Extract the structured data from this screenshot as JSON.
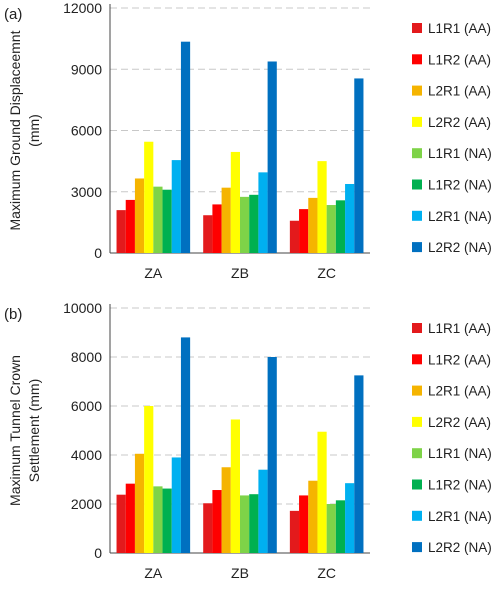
{
  "chart_data": [
    {
      "type": "bar",
      "panel_label": "(a)",
      "ylabel_lines": [
        "Maximum Ground Displaceemnt",
        "(mm)"
      ],
      "categories": [
        "ZA",
        "ZB",
        "ZC"
      ],
      "ylim": [
        0,
        12000
      ],
      "yticks": [
        0,
        3000,
        6000,
        9000,
        12000
      ],
      "grid": true,
      "legend_position": "right",
      "series": [
        {
          "name": "L1R1 (AA)",
          "color": "#e31a1c",
          "values": [
            2100,
            1850,
            1580
          ]
        },
        {
          "name": "L1R2 (AA)",
          "color": "#ff0000",
          "values": [
            2600,
            2380,
            2150
          ]
        },
        {
          "name": "L2R1 (AA)",
          "color": "#f5b400",
          "values": [
            3650,
            3200,
            2700
          ]
        },
        {
          "name": "L2R2 (AA)",
          "color": "#ffff00",
          "values": [
            5450,
            4950,
            4500
          ]
        },
        {
          "name": "L1R1 (NA)",
          "color": "#7ed348",
          "values": [
            3250,
            2750,
            2350
          ]
        },
        {
          "name": "L1R2 (NA)",
          "color": "#00b050",
          "values": [
            3100,
            2850,
            2580
          ]
        },
        {
          "name": "L2R1 (NA)",
          "color": "#00b0f0",
          "values": [
            4550,
            3950,
            3380
          ]
        },
        {
          "name": "L2R2 (NA)",
          "color": "#0070c0",
          "values": [
            10350,
            9380,
            8550
          ]
        }
      ]
    },
    {
      "type": "bar",
      "panel_label": "(b)",
      "ylabel_lines": [
        "Maximum Tunnel Crown",
        "Settlement (mm)"
      ],
      "categories": [
        "ZA",
        "ZB",
        "ZC"
      ],
      "ylim": [
        0,
        10000
      ],
      "yticks": [
        0,
        2000,
        4000,
        6000,
        8000,
        10000
      ],
      "grid": true,
      "legend_position": "right",
      "series": [
        {
          "name": "L1R1 (AA)",
          "color": "#e31a1c",
          "values": [
            2380,
            2030,
            1720
          ]
        },
        {
          "name": "L1R2 (AA)",
          "color": "#ff0000",
          "values": [
            2830,
            2570,
            2350
          ]
        },
        {
          "name": "L2R1 (AA)",
          "color": "#f5b400",
          "values": [
            4050,
            3500,
            2950
          ]
        },
        {
          "name": "L2R2 (AA)",
          "color": "#ffff00",
          "values": [
            6000,
            5450,
            4950
          ]
        },
        {
          "name": "L1R1 (NA)",
          "color": "#7ed348",
          "values": [
            2720,
            2350,
            2000
          ]
        },
        {
          "name": "L1R2 (NA)",
          "color": "#00b050",
          "values": [
            2630,
            2400,
            2150
          ]
        },
        {
          "name": "L2R1 (NA)",
          "color": "#00b0f0",
          "values": [
            3900,
            3400,
            2850
          ]
        },
        {
          "name": "L2R2 (NA)",
          "color": "#0070c0",
          "values": [
            8800,
            8000,
            7250
          ]
        }
      ]
    }
  ]
}
